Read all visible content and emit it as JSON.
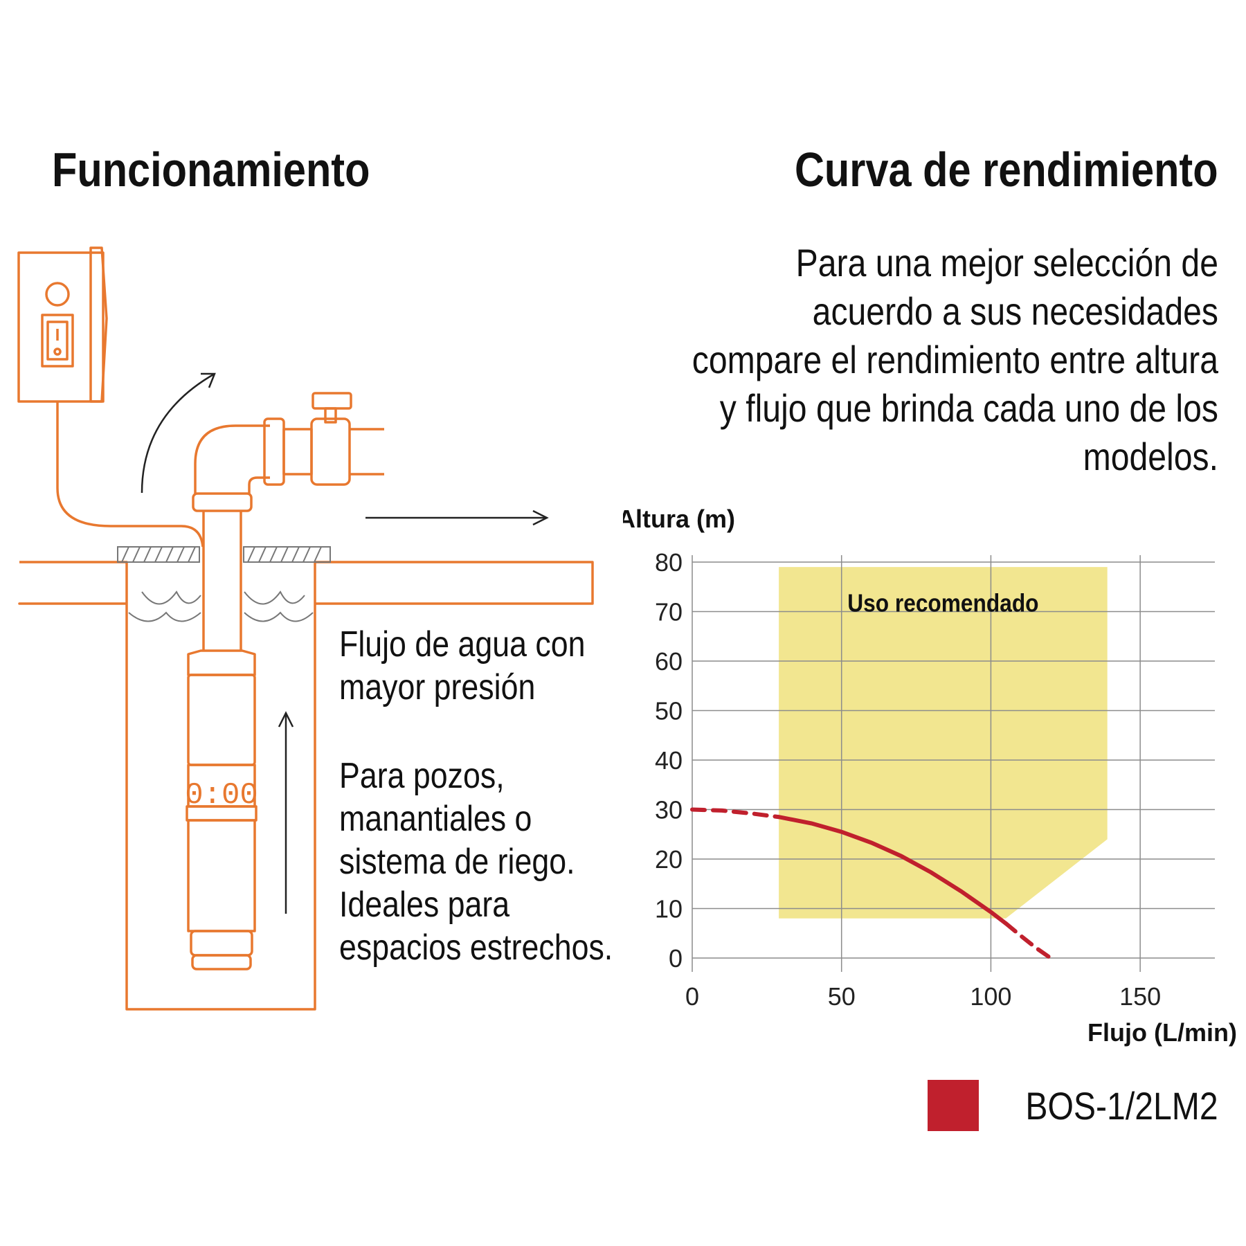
{
  "left": {
    "title": "Funcionamiento",
    "flow_text": "Flujo de agua con mayor presión",
    "uses_text": "Para pozos, manantiales o sistema de riego. Ideales para espacios estrechos.",
    "pump_display": "0:00"
  },
  "right": {
    "title": "Curva de rendimiento",
    "intro": "Para una mejor selección de acuerdo a sus necesidades compare el rendimiento entre altura y flujo que brinda cada uno de los modelos."
  },
  "colors": {
    "orange": "#e8782f",
    "curve": "#c0202d",
    "zone": "#f2e690",
    "grid": "#8c8c8c"
  },
  "chart_data": {
    "type": "line",
    "ylabel": "Altura (m)",
    "xlabel": "Flujo (L/min)",
    "xlim": [
      0,
      175
    ],
    "ylim": [
      0,
      80
    ],
    "xticks": [
      0,
      50,
      100,
      150
    ],
    "yticks": [
      0,
      10,
      20,
      30,
      40,
      50,
      60,
      70,
      80
    ],
    "grid": true,
    "recommended_zone": {
      "label": "Uso recomendado",
      "polygon": [
        [
          29,
          79
        ],
        [
          139,
          79
        ],
        [
          139,
          24
        ],
        [
          105,
          8
        ],
        [
          29,
          8
        ]
      ]
    },
    "series": [
      {
        "name": "BOS-1/2LM2",
        "color": "#c0202d",
        "dashed_segment_before": [
          [
            0,
            30
          ],
          [
            10,
            29.8
          ],
          [
            20,
            29.2
          ],
          [
            29,
            28.5
          ]
        ],
        "solid_segment": [
          [
            29,
            28.5
          ],
          [
            40,
            27.2
          ],
          [
            50,
            25.5
          ],
          [
            60,
            23.3
          ],
          [
            70,
            20.6
          ],
          [
            80,
            17.3
          ],
          [
            90,
            13.5
          ],
          [
            100,
            9.3
          ],
          [
            105,
            7
          ]
        ],
        "dashed_segment_after": [
          [
            105,
            7
          ],
          [
            110,
            4.5
          ],
          [
            115,
            2.1
          ],
          [
            120,
            0
          ]
        ]
      }
    ],
    "legend": [
      "BOS-1/2LM2"
    ],
    "legend_position": "bottom-right"
  }
}
